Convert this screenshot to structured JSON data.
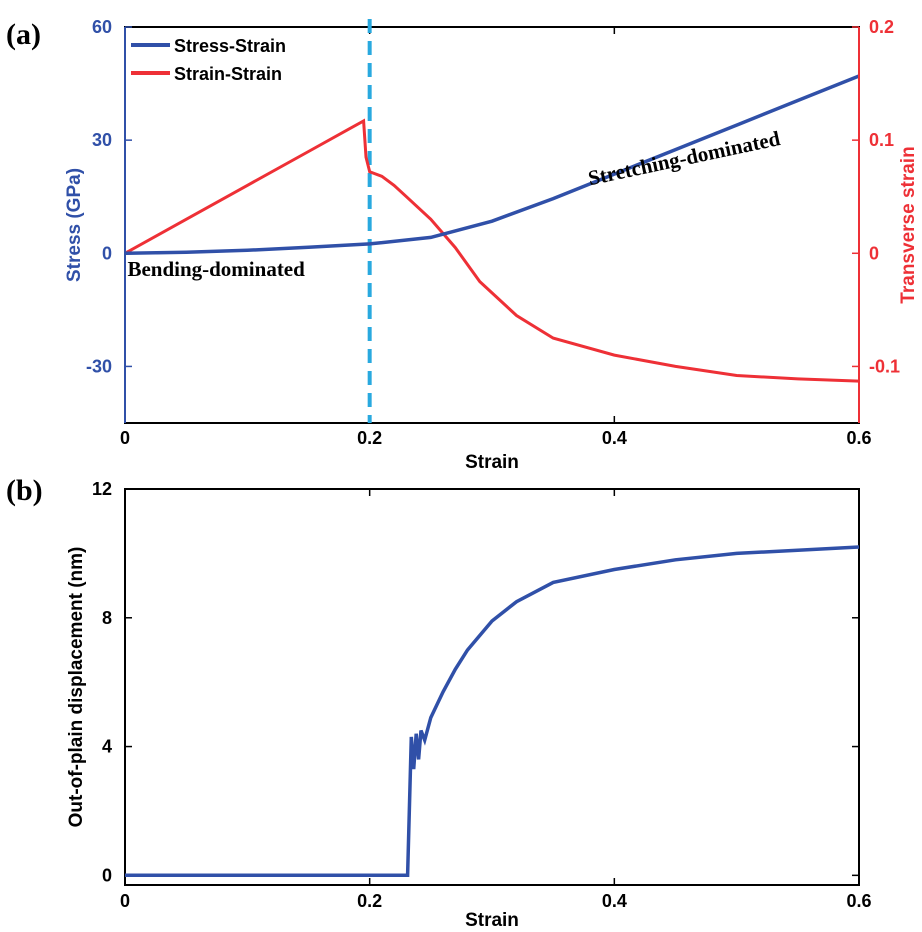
{
  "chart_data": [
    {
      "panel_label": "(a)",
      "type": "line",
      "xlabel": "Strain",
      "ylabel_left": "Stress (GPa)",
      "ylabel_right": "Transverse strain",
      "xlim": [
        0,
        0.6
      ],
      "ylim_left": [
        -45,
        60
      ],
      "ylim_right": [
        -0.15,
        0.2
      ],
      "xticks": [
        "0",
        "0.2",
        "0.4",
        "0.6"
      ],
      "yticks_left": [
        "-30",
        "0",
        "30",
        "60"
      ],
      "yticks_right": [
        "-0.1",
        "0",
        "0.1",
        "0.2"
      ],
      "legend_position": "top-left",
      "vline_x": 0.2,
      "annotations": [
        {
          "text": "Bending-dominated",
          "x": 0.002,
          "y": -6
        },
        {
          "text": "Stretching-dominated",
          "x": 0.38,
          "y": 18
        }
      ],
      "colors": {
        "stress": "#3050a8",
        "strain": "#ee3036",
        "vline": "#29a9df",
        "left_axis": "#3050a8",
        "right_axis": "#ee3036"
      },
      "series": [
        {
          "name": "Stress-Strain",
          "axis": "left",
          "x": [
            0,
            0.05,
            0.1,
            0.15,
            0.2,
            0.25,
            0.3,
            0.35,
            0.4,
            0.45,
            0.5,
            0.55,
            0.6
          ],
          "values": [
            0,
            0.3,
            0.8,
            1.6,
            2.5,
            4.2,
            8.5,
            14.5,
            21,
            27.5,
            34,
            40.5,
            47
          ]
        },
        {
          "name": "Strain-Strain",
          "axis": "right",
          "x": [
            0,
            0.05,
            0.1,
            0.15,
            0.195,
            0.197,
            0.2,
            0.21,
            0.22,
            0.23,
            0.25,
            0.27,
            0.29,
            0.3,
            0.32,
            0.35,
            0.4,
            0.45,
            0.5,
            0.55,
            0.6
          ],
          "values": [
            0,
            0.03,
            0.06,
            0.09,
            0.117,
            0.085,
            0.072,
            0.068,
            0.06,
            0.05,
            0.03,
            0.005,
            -0.025,
            -0.035,
            -0.055,
            -0.075,
            -0.09,
            -0.1,
            -0.108,
            -0.111,
            -0.113
          ]
        }
      ]
    },
    {
      "panel_label": "(b)",
      "type": "line",
      "xlabel": "Strain",
      "ylabel": "Out-of-plain displacement (nm)",
      "xlim": [
        0,
        0.6
      ],
      "ylim": [
        -0.3,
        12
      ],
      "xticks": [
        "0",
        "0.2",
        "0.4",
        "0.6"
      ],
      "yticks": [
        "0",
        "4",
        "8",
        "12"
      ],
      "colors": {
        "line": "#3050a8"
      },
      "series": [
        {
          "name": "",
          "x": [
            0,
            0.1,
            0.2,
            0.231,
            0.234,
            0.236,
            0.238,
            0.24,
            0.242,
            0.245,
            0.25,
            0.26,
            0.27,
            0.28,
            0.3,
            0.32,
            0.35,
            0.4,
            0.45,
            0.5,
            0.55,
            0.6
          ],
          "values": [
            0,
            0,
            0,
            0,
            4.3,
            3.3,
            4.4,
            3.6,
            4.5,
            4.2,
            4.9,
            5.7,
            6.4,
            7.0,
            7.9,
            8.5,
            9.1,
            9.5,
            9.8,
            10.0,
            10.1,
            10.2
          ]
        }
      ]
    }
  ]
}
